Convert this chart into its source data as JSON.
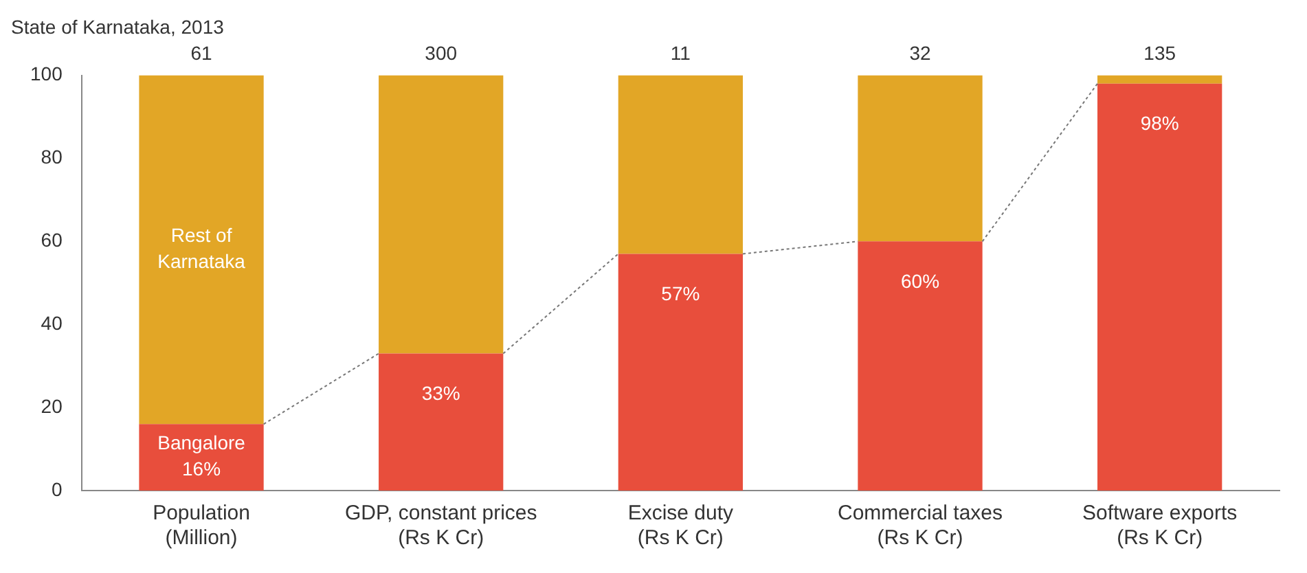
{
  "chart_data": {
    "type": "bar",
    "title": "State of Karnataka, 2013",
    "categories": [
      "Population (Million)",
      "GDP, constant prices (Rs K Cr)",
      "Excise duty (Rs K Cr)",
      "Commercial taxes (Rs K Cr)",
      "Software exports (Rs K Cr)"
    ],
    "series": [
      {
        "name": "Bangalore",
        "color": "#e84e3c",
        "values": [
          16,
          33,
          57,
          60,
          98
        ],
        "value_labels": [
          "16%",
          "33%",
          "57%",
          "60%",
          "98%"
        ]
      },
      {
        "name": "Rest of Karnataka",
        "color": "#e2a626",
        "values": [
          84,
          67,
          43,
          40,
          2
        ]
      }
    ],
    "stacked": true,
    "annotations": [
      {
        "text": "61",
        "x": "Population (Million)",
        "y": 100
      },
      {
        "text": "300",
        "x": "GDP, constant prices (Rs K Cr)",
        "y": 100
      },
      {
        "text": "11",
        "x": "Excise duty (Rs K Cr)",
        "y": 100
      },
      {
        "text": "32",
        "x": "Commercial taxes (Rs K Cr)",
        "y": 100
      },
      {
        "text": "135",
        "x": "Software exports (Rs K Cr)",
        "y": 100
      }
    ],
    "ylim": [
      0,
      100
    ],
    "yticks": [
      0,
      20,
      40,
      60,
      80,
      100
    ],
    "grid": false,
    "legend": false
  }
}
